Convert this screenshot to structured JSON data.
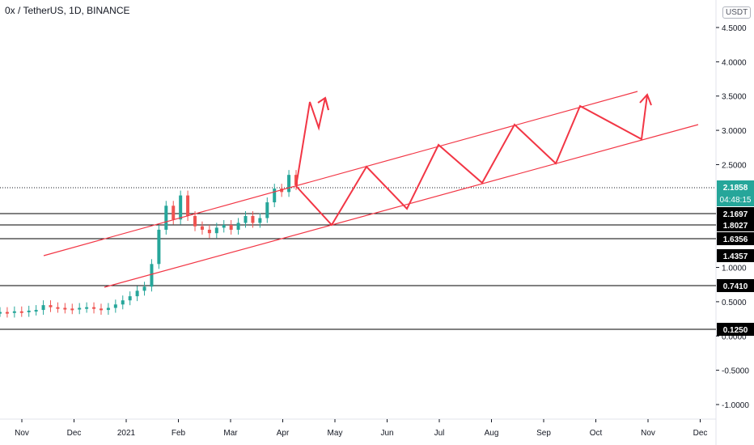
{
  "title": "0x / TetherUS, 1D, BINANCE",
  "unit_badge": "USDT",
  "colors": {
    "up": "#26a69a",
    "down": "#ef5350",
    "drawing": "#f23645",
    "line": "#000000",
    "current_bg": "#26a69a"
  },
  "chart_data": {
    "type": "candlestick",
    "title": "0x / TetherUS, 1D, BINANCE",
    "y_ticks": [
      "4.5000",
      "4.0000",
      "3.5000",
      "3.0000",
      "2.5000",
      "1.0000",
      "0.5000",
      "0.0000",
      "-0.5000",
      "-1.0000"
    ],
    "y_range": [
      -1.2,
      4.7
    ],
    "x_ticks": [
      "Nov",
      "Dec",
      "2021",
      "Feb",
      "Mar",
      "Apr",
      "May",
      "Jun",
      "Jul",
      "Aug",
      "Sep",
      "Oct",
      "Nov",
      "Dec"
    ],
    "horizontal_levels": [
      "2.1697",
      "1.8027",
      "1.6356",
      "0.7410",
      "0.1250"
    ],
    "current_price": "2.1858",
    "countdown": "04:48:15",
    "extra_label": "1.4357",
    "price_series": [
      0.35,
      0.34,
      0.36,
      0.35,
      0.37,
      0.38,
      0.45,
      0.42,
      0.41,
      0.4,
      0.39,
      0.41,
      0.42,
      0.4,
      0.38,
      0.41,
      0.46,
      0.52,
      0.58,
      0.66,
      0.72,
      1.05,
      1.55,
      1.9,
      1.7,
      2.05,
      1.75,
      1.6,
      1.55,
      1.5,
      1.58,
      1.62,
      1.55,
      1.65,
      1.75,
      1.65,
      1.72,
      1.95,
      2.15,
      2.1,
      2.35,
      2.2
    ],
    "channel": {
      "upper": [
        [
          -0.5,
          1.35
        ],
        [
          6.8,
          3.58
        ]
      ],
      "lower": [
        [
          1.2,
          0.72
        ],
        [
          7.9,
          3.1
        ]
      ]
    },
    "projection": [
      [
        6.05,
        2.3
      ],
      [
        6.75,
        1.8
      ],
      [
        7.45,
        2.5
      ],
      [
        8.05,
        2.0
      ],
      [
        8.75,
        2.75
      ],
      [
        9.35,
        2.25
      ],
      [
        10.05,
        3.05
      ],
      [
        10.7,
        2.55
      ],
      [
        11.4,
        3.45
      ],
      [
        12.2,
        2.9
      ]
    ],
    "arrow_small": [
      [
        6.05,
        2.3
      ],
      [
        6.55,
        3.1
      ],
      [
        6.8,
        3.5
      ]
    ],
    "arrow_large_tip": [
      12.5,
      3.5
    ]
  }
}
